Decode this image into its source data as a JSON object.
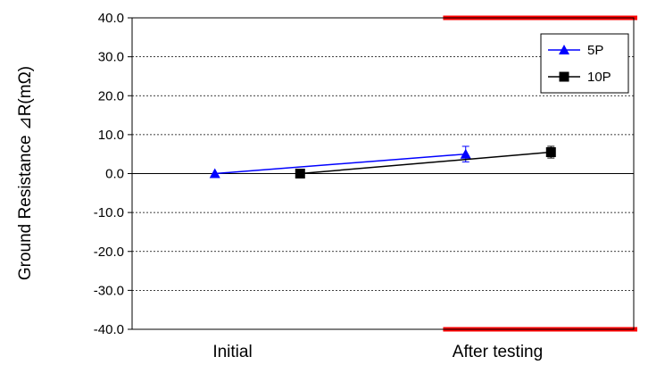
{
  "chart_data": {
    "type": "line",
    "categories": [
      "Initial",
      "After testing"
    ],
    "ylabel": "Ground Resistance ⊿R(mΩ)",
    "ylim": [
      -40,
      40
    ],
    "yticks": [
      "40.0",
      "30.0",
      "20.0",
      "10.0",
      "0.0",
      "-10.0",
      "-20.0",
      "-30.0",
      "-40.0"
    ],
    "grid": true,
    "legend_position": "top-right",
    "limit_lines": [
      {
        "y": 40,
        "color": "#ff0000",
        "from_category": "After testing"
      },
      {
        "y": -40,
        "color": "#ff0000",
        "from_category": "After testing"
      }
    ],
    "series": [
      {
        "name": "5P",
        "color": "#0000ff",
        "marker": "triangle",
        "values": [
          0.0,
          5.0
        ],
        "error": [
          0.0,
          2.0
        ],
        "offset": -0.17
      },
      {
        "name": "10P",
        "color": "#000000",
        "marker": "square",
        "values": [
          0.0,
          5.5
        ],
        "error": [
          0.0,
          1.5
        ],
        "offset": 0.17
      }
    ]
  }
}
